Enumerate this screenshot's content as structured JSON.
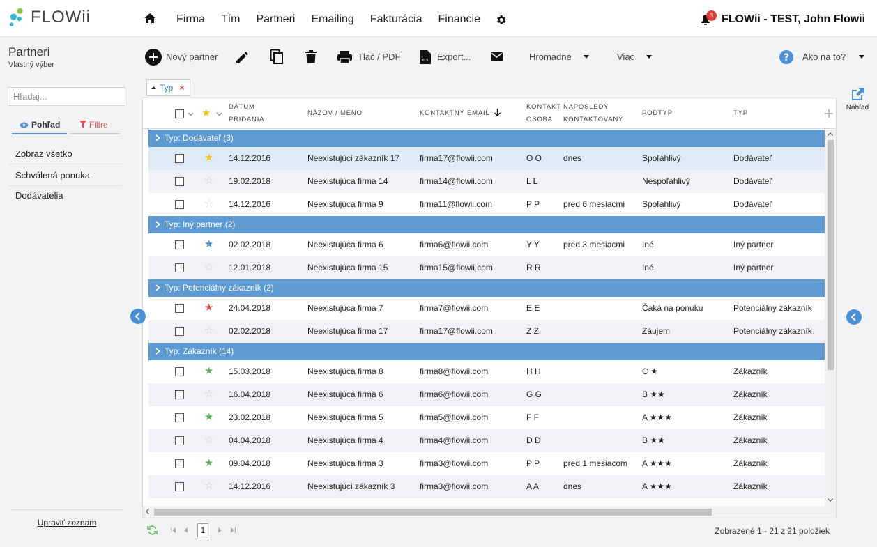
{
  "app": {
    "brand": "FLOWii",
    "nav": [
      "Firma",
      "Tím",
      "Partneri",
      "Emailing",
      "Fakturácia",
      "Financie"
    ],
    "notifications": "3",
    "account": "FLOWii - TEST, John Flowii"
  },
  "left": {
    "title": "Partneri",
    "subtitle": "Vlastný výber",
    "search_placeholder": "Hľadaj...",
    "tab_view": "Pohľad",
    "tab_filter": "Filtre",
    "items": [
      "Zobraz všetko",
      "Schválená ponuka",
      "Dodávatelia"
    ],
    "edit_list": "Upraviť zoznam"
  },
  "toolbar": {
    "new_partner": "Nový partner",
    "print": "Tlač / PDF",
    "export": "Export...",
    "bulk": "Hromadne",
    "more": "Viac",
    "help": "Ako na to?"
  },
  "group_chip": "Typ",
  "preview": "Náhľad",
  "columns": {
    "date_1": "Dátum",
    "date_2": "pridania",
    "name": "Názov / meno",
    "email": "Kontaktný email",
    "contact_1": "Kontakt",
    "contact_2": "osoba",
    "last_1": "Naposledy",
    "last_2": "kontaktovaný",
    "subtype": "Podtyp",
    "type": "Typ"
  },
  "groups": [
    {
      "label": "Typ: Dodávateľ (3)",
      "rows": [
        {
          "star": "gold",
          "date": "14.12.2016",
          "name": "Neexistujúci zákazník 17",
          "email": "firma17@flowii.com",
          "contact": "O O",
          "last": "dnes",
          "subtype": "Spoľahlivý",
          "type": "Dodávateľ",
          "selected": true
        },
        {
          "star": "none",
          "date": "19.02.2018",
          "name": "Neexistujúca firma 14",
          "email": "firma14@flowii.com",
          "contact": "L L",
          "last": "",
          "subtype": "Nespoľahlivý",
          "type": "Dodávateľ"
        },
        {
          "star": "none",
          "date": "14.12.2016",
          "name": "Neexistujúca firma 9",
          "email": "firma11@flowii.com",
          "contact": "P P",
          "last": "pred 6 mesiacmi",
          "subtype": "Spoľahlivý",
          "type": "Dodávateľ"
        }
      ]
    },
    {
      "label": "Typ: Iný partner (2)",
      "rows": [
        {
          "star": "blue",
          "date": "02.02.2018",
          "name": "Neexistujúca firma 6",
          "email": "firma6@flowii.com",
          "contact": "Y Y",
          "last": "pred 3 mesiacmi",
          "subtype": "Iné",
          "type": "Iný partner"
        },
        {
          "star": "none",
          "date": "12.01.2018",
          "name": "Neexistujúca firma 15",
          "email": "firma15@flowii.com",
          "contact": "R R",
          "last": "",
          "subtype": "Iné",
          "type": "Iný partner"
        }
      ]
    },
    {
      "label": "Typ: Potenciálny zákazník (2)",
      "rows": [
        {
          "star": "red",
          "date": "24.04.2018",
          "name": "Neexistujúca firma 7",
          "email": "firma7@flowii.com",
          "contact": "E E",
          "last": "",
          "subtype": "Čaká na ponuku",
          "type": "Potenciálny zákazník"
        },
        {
          "star": "none",
          "date": "02.02.2018",
          "name": "Neexistujúca firma 17",
          "email": "firma17@flowii.com",
          "contact": "Z Z",
          "last": "",
          "subtype": "Záujem",
          "type": "Potenciálny zákazník"
        }
      ]
    },
    {
      "label": "Typ: Zákazník (14)",
      "rows": [
        {
          "star": "green",
          "date": "15.03.2018",
          "name": "Neexistujúca firma 8",
          "email": "firma8@flowii.com",
          "contact": "H H",
          "last": "",
          "subtype": "C ★",
          "type": "Zákazník"
        },
        {
          "star": "none",
          "date": "16.04.2018",
          "name": "Neexistujúca firma 6",
          "email": "firma6@flowii.com",
          "contact": "G G",
          "last": "",
          "subtype": "B ★★",
          "type": "Zákazník"
        },
        {
          "star": "green",
          "date": "23.02.2018",
          "name": "Neexistujúca firma 5",
          "email": "firma5@flowii.com",
          "contact": "F F",
          "last": "",
          "subtype": "A ★★★",
          "type": "Zákazník"
        },
        {
          "star": "none",
          "date": "04.04.2018",
          "name": "Neexistujúca firma 4",
          "email": "firma4@flowii.com",
          "contact": "D D",
          "last": "",
          "subtype": "B ★★",
          "type": "Zákazník"
        },
        {
          "star": "green",
          "date": "09.04.2018",
          "name": "Neexistujúca firma 3",
          "email": "firma3@flowii.com",
          "contact": "P P",
          "last": "pred 1 mesiacom",
          "subtype": "A ★★★",
          "type": "Zákazník"
        },
        {
          "star": "none",
          "date": "14.12.2016",
          "name": "Neexistujúci zákazník 3",
          "email": "firma3@flowii.com",
          "contact": "A A",
          "last": "dnes",
          "subtype": "A ★★★",
          "type": "Zákazník"
        }
      ]
    }
  ],
  "pager": {
    "page": "1",
    "info": "Zobrazené 1 - 21 z 21 položiek"
  },
  "colors": {
    "group_header": "#5e9ad2",
    "accent": "#4a90d9",
    "star_gold": "#f5c518",
    "star_blue": "#4a8fd0",
    "star_red": "#e34b4b",
    "star_green": "#5cb85c",
    "star_none": "#c8c8c8"
  }
}
